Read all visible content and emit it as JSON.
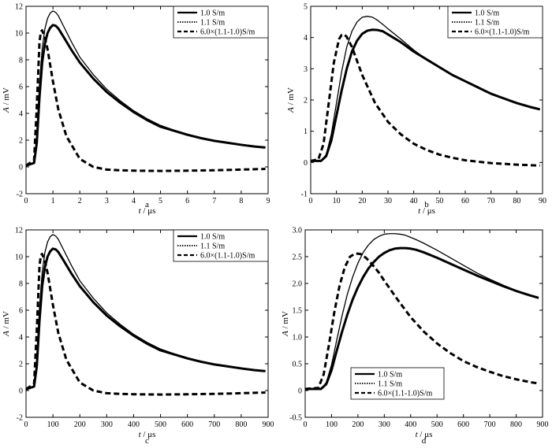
{
  "chart_data": [
    {
      "panel": "a",
      "type": "line",
      "xlabel_var": "t",
      "xlabel_unit": " / μs",
      "ylabel_var": "A",
      "ylabel_unit": " / mV",
      "xlim": [
        0,
        9
      ],
      "ylim": [
        -2,
        12
      ],
      "xticks": [
        0,
        1,
        2,
        3,
        4,
        5,
        6,
        7,
        8,
        9
      ],
      "yticks": [
        -2,
        0,
        2,
        4,
        6,
        8,
        10,
        12
      ],
      "legend_position": "top-right",
      "series": [
        {
          "name": "1.0 S/m",
          "style": "thick-solid",
          "x": [
            0,
            0.3,
            0.4,
            0.5,
            0.6,
            0.7,
            0.8,
            0.9,
            1.0,
            1.1,
            1.2,
            1.4,
            1.7,
            2,
            2.5,
            3,
            3.5,
            4,
            4.5,
            5,
            5.5,
            6,
            6.5,
            7,
            7.5,
            8,
            8.5,
            8.9
          ],
          "y": [
            0.1,
            0.3,
            1.8,
            5.2,
            7.8,
            9.2,
            10.0,
            10.4,
            10.6,
            10.55,
            10.35,
            9.7,
            8.7,
            7.8,
            6.6,
            5.6,
            4.8,
            4.1,
            3.5,
            3.0,
            2.7,
            2.4,
            2.15,
            1.95,
            1.8,
            1.65,
            1.52,
            1.45
          ]
        },
        {
          "name": "1.1 S/m",
          "style": "thin-solid",
          "x": [
            0,
            0.3,
            0.4,
            0.5,
            0.6,
            0.7,
            0.8,
            0.9,
            1.0,
            1.1,
            1.2,
            1.4,
            1.7,
            2,
            2.5,
            3,
            3.5,
            4,
            4.5,
            5,
            5.5,
            6,
            6.5,
            7,
            7.5,
            8,
            8.5,
            8.9
          ],
          "y": [
            0.1,
            0.35,
            2.2,
            6.2,
            8.8,
            10.3,
            11.1,
            11.5,
            11.65,
            11.55,
            11.3,
            10.5,
            9.3,
            8.2,
            6.9,
            5.8,
            4.95,
            4.2,
            3.6,
            3.1,
            2.75,
            2.45,
            2.2,
            1.98,
            1.82,
            1.68,
            1.55,
            1.47
          ]
        },
        {
          "name": "6.0×(1.1-1.0)S/m",
          "style": "dashed",
          "x": [
            0,
            0.3,
            0.4,
            0.5,
            0.55,
            0.6,
            0.7,
            0.8,
            1.0,
            1.2,
            1.5,
            2,
            2.5,
            3,
            3.5,
            4,
            5,
            6,
            7,
            8,
            8.9
          ],
          "y": [
            0.1,
            0.5,
            4.5,
            9.3,
            10.1,
            10.2,
            9.7,
            8.8,
            6.4,
            4.3,
            2.3,
            0.6,
            0.0,
            -0.2,
            -0.25,
            -0.28,
            -0.3,
            -0.28,
            -0.25,
            -0.2,
            -0.15
          ]
        }
      ]
    },
    {
      "panel": "b",
      "type": "line",
      "xlabel_var": "t",
      "xlabel_unit": " / μs",
      "ylabel_var": "A",
      "ylabel_unit": " / mV",
      "xlim": [
        0,
        90
      ],
      "ylim": [
        -1,
        5
      ],
      "xticks": [
        0,
        10,
        20,
        30,
        40,
        50,
        60,
        70,
        80,
        90
      ],
      "yticks": [
        -1,
        0,
        1,
        2,
        3,
        4,
        5
      ],
      "legend_position": "top-right",
      "series": [
        {
          "name": "1.0 S/m",
          "style": "thick-solid",
          "x": [
            0,
            4,
            6,
            8,
            10,
            12,
            14,
            16,
            18,
            20,
            22,
            24,
            26,
            28,
            30,
            35,
            40,
            45,
            50,
            55,
            60,
            65,
            70,
            75,
            80,
            85,
            89
          ],
          "y": [
            0.05,
            0.05,
            0.2,
            0.7,
            1.5,
            2.3,
            3.0,
            3.55,
            3.9,
            4.12,
            4.22,
            4.25,
            4.24,
            4.2,
            4.1,
            3.85,
            3.55,
            3.3,
            3.05,
            2.8,
            2.6,
            2.4,
            2.2,
            2.05,
            1.9,
            1.78,
            1.7
          ]
        },
        {
          "name": "1.1 S/m",
          "style": "thin-solid",
          "x": [
            0,
            4,
            6,
            8,
            10,
            12,
            14,
            16,
            18,
            20,
            22,
            24,
            26,
            28,
            30,
            35,
            40,
            45,
            50,
            55,
            60,
            65,
            70,
            75,
            80,
            85,
            89
          ],
          "y": [
            0.05,
            0.05,
            0.25,
            0.9,
            1.9,
            2.9,
            3.7,
            4.2,
            4.5,
            4.65,
            4.68,
            4.65,
            4.55,
            4.42,
            4.28,
            3.95,
            3.6,
            3.3,
            3.05,
            2.8,
            2.6,
            2.4,
            2.22,
            2.06,
            1.92,
            1.8,
            1.72
          ]
        },
        {
          "name": "6.0×(1.1-1.0)S/m",
          "style": "dashed",
          "x": [
            0,
            3,
            5,
            7,
            9,
            11,
            12,
            13,
            14,
            16,
            18,
            20,
            25,
            30,
            35,
            40,
            45,
            50,
            55,
            60,
            70,
            80,
            89
          ],
          "y": [
            0.05,
            0.1,
            0.6,
            1.9,
            3.2,
            3.95,
            4.08,
            4.1,
            4.02,
            3.7,
            3.25,
            2.8,
            1.9,
            1.3,
            0.9,
            0.6,
            0.4,
            0.25,
            0.15,
            0.07,
            -0.02,
            -0.07,
            -0.1
          ]
        }
      ]
    },
    {
      "panel": "c",
      "type": "line",
      "xlabel_var": "t",
      "xlabel_unit": " / μs",
      "ylabel_var": "A",
      "ylabel_unit": " / mV",
      "xlim": [
        0,
        900
      ],
      "ylim": [
        -2,
        12
      ],
      "xticks": [
        0,
        100,
        200,
        300,
        400,
        500,
        600,
        700,
        800,
        900
      ],
      "yticks": [
        -2,
        0,
        2,
        4,
        6,
        8,
        10,
        12
      ],
      "legend_position": "top-right",
      "series": [
        {
          "name": "1.0 S/m",
          "style": "thick-solid",
          "x": [
            0,
            30,
            40,
            50,
            60,
            70,
            80,
            90,
            100,
            110,
            120,
            140,
            170,
            200,
            250,
            300,
            350,
            400,
            450,
            500,
            550,
            600,
            650,
            700,
            750,
            800,
            850,
            890
          ],
          "y": [
            0.1,
            0.3,
            1.8,
            5.2,
            7.8,
            9.2,
            10.0,
            10.4,
            10.6,
            10.55,
            10.35,
            9.7,
            8.7,
            7.8,
            6.6,
            5.6,
            4.8,
            4.1,
            3.5,
            3.0,
            2.7,
            2.4,
            2.15,
            1.95,
            1.8,
            1.65,
            1.52,
            1.45
          ]
        },
        {
          "name": "1.1 S/m",
          "style": "thin-solid",
          "x": [
            0,
            30,
            40,
            50,
            60,
            70,
            80,
            90,
            100,
            110,
            120,
            140,
            170,
            200,
            250,
            300,
            350,
            400,
            450,
            500,
            550,
            600,
            650,
            700,
            750,
            800,
            850,
            890
          ],
          "y": [
            0.1,
            0.35,
            2.2,
            6.2,
            8.8,
            10.3,
            11.1,
            11.5,
            11.65,
            11.55,
            11.3,
            10.5,
            9.3,
            8.2,
            6.9,
            5.8,
            4.95,
            4.2,
            3.6,
            3.1,
            2.75,
            2.45,
            2.2,
            1.98,
            1.82,
            1.68,
            1.55,
            1.47
          ]
        },
        {
          "name": "6.0×(1.1-1.0)S/m",
          "style": "dashed",
          "x": [
            0,
            30,
            40,
            50,
            55,
            60,
            70,
            80,
            100,
            120,
            150,
            200,
            250,
            300,
            350,
            400,
            500,
            600,
            700,
            800,
            890
          ],
          "y": [
            0.1,
            0.5,
            4.5,
            9.3,
            10.1,
            10.2,
            9.7,
            8.8,
            6.4,
            4.3,
            2.3,
            0.6,
            0.0,
            -0.2,
            -0.25,
            -0.28,
            -0.3,
            -0.28,
            -0.25,
            -0.2,
            -0.15
          ]
        }
      ]
    },
    {
      "panel": "d",
      "type": "line",
      "xlabel_var": "t",
      "xlabel_unit": " / μs",
      "ylabel_var": "A",
      "ylabel_unit": " / mV",
      "xlim": [
        0,
        900
      ],
      "ylim": [
        -0.5,
        3.0
      ],
      "xticks": [
        0,
        100,
        200,
        300,
        400,
        500,
        600,
        700,
        800,
        900
      ],
      "yticks": [
        -0.5,
        0,
        0.5,
        1.0,
        1.5,
        2.0,
        2.5,
        3.0
      ],
      "ytick_labels": [
        "-0.5",
        "0",
        "0.5",
        "1.0",
        "1.5",
        "2.0",
        "2.5",
        "3.0"
      ],
      "legend_position": "bottom-left",
      "series": [
        {
          "name": "1.0 S/m",
          "style": "thick-solid",
          "x": [
            0,
            60,
            80,
            100,
            120,
            140,
            160,
            180,
            200,
            220,
            240,
            260,
            280,
            300,
            320,
            340,
            360,
            380,
            400,
            420,
            450,
            500,
            550,
            600,
            650,
            700,
            750,
            800,
            850,
            885
          ],
          "y": [
            0.03,
            0.03,
            0.12,
            0.38,
            0.75,
            1.1,
            1.42,
            1.7,
            1.93,
            2.12,
            2.28,
            2.4,
            2.5,
            2.57,
            2.62,
            2.65,
            2.66,
            2.66,
            2.65,
            2.63,
            2.58,
            2.48,
            2.37,
            2.26,
            2.15,
            2.05,
            1.95,
            1.86,
            1.78,
            1.73
          ]
        },
        {
          "name": "1.1 S/m",
          "style": "thin-solid",
          "x": [
            0,
            60,
            80,
            100,
            120,
            140,
            160,
            180,
            200,
            220,
            240,
            260,
            280,
            300,
            320,
            340,
            360,
            380,
            400,
            420,
            450,
            500,
            550,
            600,
            650,
            700,
            750,
            800,
            850,
            885
          ],
          "y": [
            0.03,
            0.03,
            0.15,
            0.48,
            0.95,
            1.4,
            1.8,
            2.12,
            2.38,
            2.58,
            2.72,
            2.82,
            2.88,
            2.92,
            2.93,
            2.93,
            2.92,
            2.9,
            2.86,
            2.82,
            2.75,
            2.62,
            2.48,
            2.34,
            2.2,
            2.08,
            1.97,
            1.87,
            1.78,
            1.72
          ]
        },
        {
          "name": "6.0×(1.1-1.0)S/m",
          "style": "dashed",
          "x": [
            0,
            50,
            70,
            90,
            110,
            130,
            150,
            170,
            190,
            210,
            230,
            250,
            280,
            300,
            350,
            400,
            450,
            500,
            550,
            600,
            650,
            700,
            750,
            800,
            850,
            885
          ],
          "y": [
            0.03,
            0.05,
            0.3,
            0.85,
            1.45,
            1.95,
            2.3,
            2.5,
            2.56,
            2.55,
            2.48,
            2.38,
            2.2,
            2.05,
            1.7,
            1.37,
            1.1,
            0.88,
            0.7,
            0.55,
            0.44,
            0.35,
            0.27,
            0.21,
            0.16,
            0.13
          ]
        }
      ]
    }
  ]
}
